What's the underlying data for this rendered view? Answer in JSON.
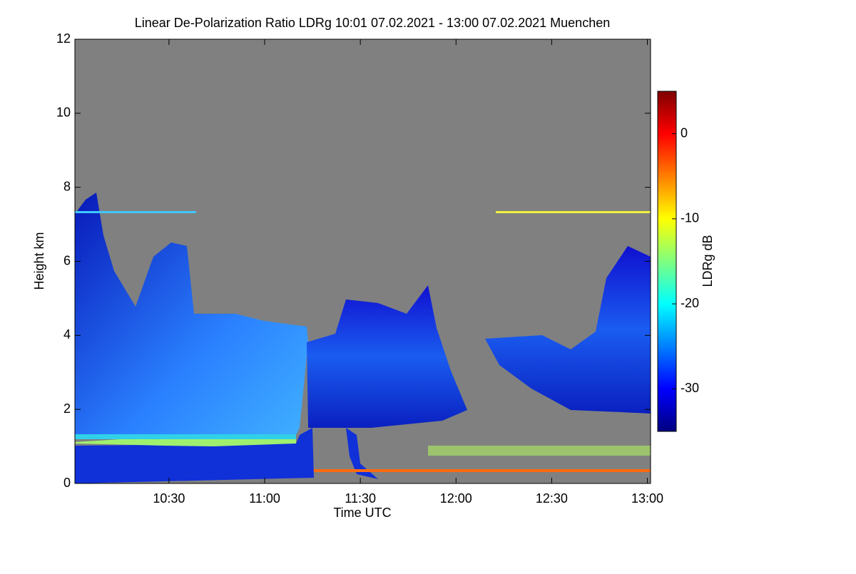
{
  "chart_data": {
    "type": "heatmap",
    "title": "Linear De-Polarization Ratio LDRg   10:01 07.02.2021 - 13:00 07.02.2021 Muenchen",
    "xlabel": "Time UTC",
    "ylabel": "Height km",
    "xlim": [
      600.5,
      781
    ],
    "xticks": [
      {
        "value": 630,
        "label": "10:30"
      },
      {
        "value": 660,
        "label": "11:00"
      },
      {
        "value": 690,
        "label": "11:30"
      },
      {
        "value": 720,
        "label": "12:00"
      },
      {
        "value": 750,
        "label": "12:30"
      },
      {
        "value": 780,
        "label": "13:00"
      }
    ],
    "ylim": [
      0,
      12
    ],
    "yticks": [
      0,
      2,
      4,
      6,
      8,
      10,
      12
    ],
    "missing_color": "#808080",
    "colorbar": {
      "label": "LDRg dB",
      "zlim": [
        -35,
        5
      ],
      "ticks": [
        0,
        -10,
        -20,
        -30
      ],
      "colormap": "jet"
    }
  }
}
